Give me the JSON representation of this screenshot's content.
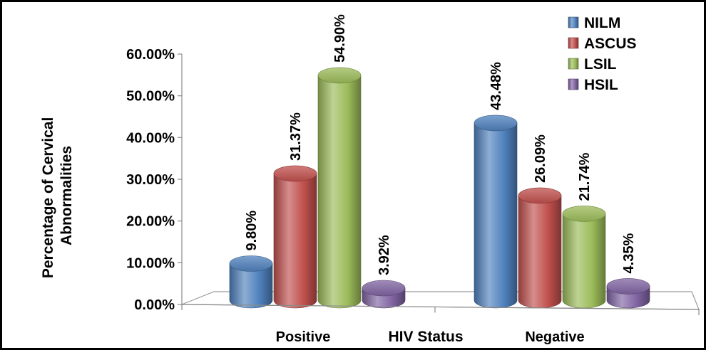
{
  "chart_data": {
    "type": "bar",
    "categories": [
      "Positive",
      "Negative"
    ],
    "series": [
      {
        "name": "NILM",
        "values": [
          9.8,
          43.48
        ],
        "value_labels": [
          "9.80%",
          "43.48%"
        ],
        "color": "#4F81BD"
      },
      {
        "name": "ASCUS",
        "values": [
          31.37,
          26.09
        ],
        "value_labels": [
          "31.37%",
          "26.09%"
        ],
        "color": "#C0504D"
      },
      {
        "name": "LSIL",
        "values": [
          54.9,
          21.74
        ],
        "value_labels": [
          "54.90%",
          "21.74%"
        ],
        "color": "#9BBB59"
      },
      {
        "name": "HSIL",
        "values": [
          3.92,
          4.35
        ],
        "value_labels": [
          "3.92%",
          "4.35%"
        ],
        "color": "#8064A2"
      }
    ],
    "xlabel": "HIV Status",
    "ylabel": "Percentage of Cervical Abnormalities",
    "ylabel_lines": [
      "Percentage of Cervical",
      "Abnormalities"
    ],
    "ylim": [
      0,
      60
    ],
    "yticks": [
      0,
      10,
      20,
      30,
      40,
      50,
      60
    ],
    "ytick_labels": [
      "0.00%",
      "10.00%",
      "20.00%",
      "30.00%",
      "40.00%",
      "50.00%",
      "60.00%"
    ],
    "grid": false,
    "legend_position": "top-right"
  }
}
